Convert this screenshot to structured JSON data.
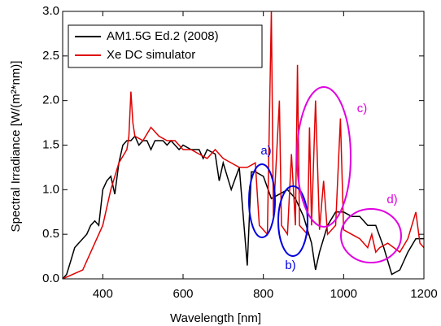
{
  "chart_data": {
    "type": "line",
    "xlabel": "Wavelength [nm]",
    "ylabel": "Spectral Irradiance [W/(m²*nm)]",
    "xlim": [
      300,
      1200
    ],
    "ylim": [
      0,
      3
    ],
    "xticks": [
      400,
      600,
      800,
      1000,
      1200
    ],
    "yticks": [
      {
        "value": 0,
        "label": "0.0"
      },
      {
        "value": 0.5,
        "label": "0.5"
      },
      {
        "value": 1,
        "label": "1.0"
      },
      {
        "value": 1.5,
        "label": "1.5"
      },
      {
        "value": 2,
        "label": "2.0"
      },
      {
        "value": 2.5,
        "label": "2.5"
      },
      {
        "value": 3,
        "label": "3.0"
      }
    ],
    "legend": "top-left",
    "series": [
      {
        "name": "AM1.5G Ed.2 (2008)",
        "color": "#000000",
        "x": [
          300,
          310,
          320,
          330,
          340,
          350,
          360,
          370,
          380,
          390,
          400,
          410,
          420,
          430,
          440,
          450,
          460,
          470,
          480,
          490,
          500,
          510,
          520,
          530,
          540,
          550,
          560,
          570,
          580,
          590,
          600,
          620,
          640,
          650,
          660,
          680,
          690,
          700,
          720,
          740,
          760,
          770,
          780,
          800,
          820,
          840,
          860,
          880,
          900,
          920,
          930,
          940,
          960,
          980,
          1000,
          1020,
          1040,
          1060,
          1080,
          1100,
          1120,
          1140,
          1160,
          1180,
          1200
        ],
        "values": [
          0,
          0.05,
          0.2,
          0.35,
          0.4,
          0.45,
          0.5,
          0.6,
          0.65,
          0.6,
          1.0,
          1.1,
          1.15,
          0.95,
          1.3,
          1.5,
          1.55,
          1.55,
          1.6,
          1.5,
          1.55,
          1.55,
          1.45,
          1.55,
          1.55,
          1.55,
          1.5,
          1.55,
          1.5,
          1.45,
          1.5,
          1.45,
          1.45,
          1.35,
          1.45,
          1.4,
          1.1,
          1.3,
          1.0,
          1.25,
          0.15,
          1.2,
          1.2,
          1.15,
          0.9,
          0.95,
          1.0,
          0.9,
          0.7,
          0.4,
          0.1,
          0.3,
          0.6,
          0.75,
          0.75,
          0.7,
          0.7,
          0.6,
          0.6,
          0.35,
          0.05,
          0.1,
          0.3,
          0.45,
          0.45
        ]
      },
      {
        "name": "Xe DC simulator",
        "color": "#e00000",
        "x": [
          300,
          350,
          380,
          400,
          420,
          440,
          460,
          465,
          470,
          475,
          480,
          500,
          520,
          540,
          560,
          580,
          600,
          620,
          640,
          660,
          680,
          700,
          720,
          740,
          760,
          780,
          790,
          800,
          810,
          820,
          825,
          840,
          845,
          860,
          870,
          880,
          885,
          890,
          900,
          910,
          915,
          920,
          930,
          940,
          950,
          960,
          980,
          992,
          1000,
          1020,
          1040,
          1060,
          1070,
          1080,
          1090,
          1110,
          1140,
          1160,
          1180,
          1190,
          1200
        ],
        "values": [
          0,
          0.1,
          0.4,
          0.6,
          1.0,
          1.3,
          1.45,
          1.6,
          2.1,
          1.75,
          1.6,
          1.55,
          1.7,
          1.6,
          1.55,
          1.55,
          1.45,
          1.45,
          1.4,
          1.35,
          1.45,
          1.35,
          1.3,
          1.25,
          1.25,
          1.3,
          0.6,
          0.55,
          0.5,
          3.0,
          0.7,
          2.0,
          0.6,
          0.5,
          1.4,
          0.6,
          2.4,
          0.6,
          0.55,
          0.5,
          1.7,
          0.6,
          2.0,
          0.55,
          1.1,
          0.5,
          0.6,
          1.8,
          0.55,
          0.5,
          0.45,
          0.35,
          0.5,
          0.3,
          0.35,
          0.4,
          0.3,
          0.45,
          0.75,
          0.4,
          0.35
        ]
      }
    ],
    "annotations": [
      {
        "text": "a)",
        "color": "#0000e0"
      },
      {
        "text": "b)",
        "color": "#0000e0"
      },
      {
        "text": "c)",
        "color": "#e000e0"
      },
      {
        "text": "d)",
        "color": "#e000e0"
      }
    ]
  }
}
